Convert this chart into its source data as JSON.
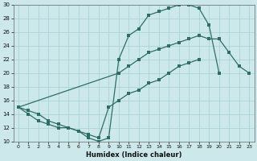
{
  "xlabel": "Humidex (Indice chaleur)",
  "xlim": [
    -0.5,
    23.5
  ],
  "ylim": [
    10,
    30
  ],
  "xticks": [
    0,
    1,
    2,
    3,
    4,
    5,
    6,
    7,
    8,
    9,
    10,
    11,
    12,
    13,
    14,
    15,
    16,
    17,
    18,
    19,
    20,
    21,
    22,
    23
  ],
  "yticks": [
    10,
    12,
    14,
    16,
    18,
    20,
    22,
    24,
    26,
    28,
    30
  ],
  "bg_color": "#cce8ea",
  "grid_color": "#aad4d8",
  "line_color": "#2e6e65",
  "curve1_x": [
    0,
    1,
    2,
    3,
    4,
    5,
    6,
    7,
    8,
    9,
    10,
    11,
    12,
    13,
    14,
    15,
    16,
    17,
    18,
    19,
    20
  ],
  "curve1_y": [
    15,
    14.5,
    14,
    13,
    12.5,
    12,
    11.5,
    10.5,
    10,
    10.5,
    22,
    25.5,
    26.5,
    28.5,
    29,
    29.5,
    30,
    30,
    29.5,
    27,
    20
  ],
  "curve2_x": [
    0,
    10,
    11,
    12,
    13,
    14,
    15,
    16,
    17,
    18,
    19,
    20,
    21,
    22,
    23
  ],
  "curve2_y": [
    15,
    20,
    21,
    22,
    23,
    23.5,
    24,
    24.5,
    25,
    25.5,
    25,
    25,
    23,
    21,
    20
  ],
  "curve3_x": [
    0,
    1,
    2,
    3,
    4,
    5,
    6,
    7,
    8,
    9,
    10,
    11,
    12,
    13,
    14,
    15,
    16,
    17,
    18
  ],
  "curve3_y": [
    15,
    14,
    13,
    12.5,
    12,
    12,
    11.5,
    11,
    10.5,
    15,
    16,
    17,
    17.5,
    18.5,
    19,
    20,
    21,
    21.5,
    22
  ]
}
